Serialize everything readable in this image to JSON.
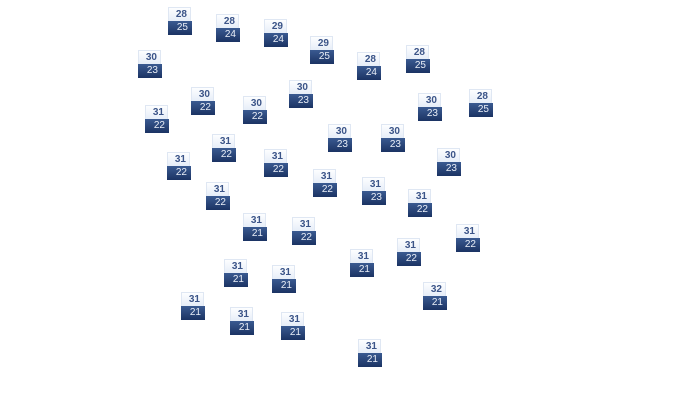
{
  "accent_colors": {
    "high_bg": "#eef3fb",
    "low_bg": "#243d70",
    "high_text": "#3b5488",
    "low_text": "#ffffff"
  },
  "markers": [
    {
      "high": "28",
      "low": "25"
    },
    {
      "high": "28",
      "low": "24"
    },
    {
      "high": "29",
      "low": "24"
    },
    {
      "high": "29",
      "low": "25"
    },
    {
      "high": "30",
      "low": "23"
    },
    {
      "high": "28",
      "low": "24"
    },
    {
      "high": "28",
      "low": "25"
    },
    {
      "high": "30",
      "low": "22"
    },
    {
      "high": "30",
      "low": "23"
    },
    {
      "high": "30",
      "low": "22"
    },
    {
      "high": "31",
      "low": "22"
    },
    {
      "high": "30",
      "low": "23"
    },
    {
      "high": "28",
      "low": "25"
    },
    {
      "high": "30",
      "low": "23"
    },
    {
      "high": "30",
      "low": "23"
    },
    {
      "high": "31",
      "low": "22"
    },
    {
      "high": "31",
      "low": "22"
    },
    {
      "high": "31",
      "low": "22"
    },
    {
      "high": "30",
      "low": "23"
    },
    {
      "high": "31",
      "low": "22"
    },
    {
      "high": "31",
      "low": "23"
    },
    {
      "high": "31",
      "low": "22"
    },
    {
      "high": "31",
      "low": "22"
    },
    {
      "high": "31",
      "low": "21"
    },
    {
      "high": "31",
      "low": "22"
    },
    {
      "high": "31",
      "low": "22"
    },
    {
      "high": "31",
      "low": "22"
    },
    {
      "high": "31",
      "low": "21"
    },
    {
      "high": "31",
      "low": "21"
    },
    {
      "high": "31",
      "low": "21"
    },
    {
      "high": "32",
      "low": "21"
    },
    {
      "high": "31",
      "low": "21"
    },
    {
      "high": "31",
      "low": "21"
    },
    {
      "high": "31",
      "low": "21"
    },
    {
      "high": "31",
      "low": "21"
    }
  ]
}
